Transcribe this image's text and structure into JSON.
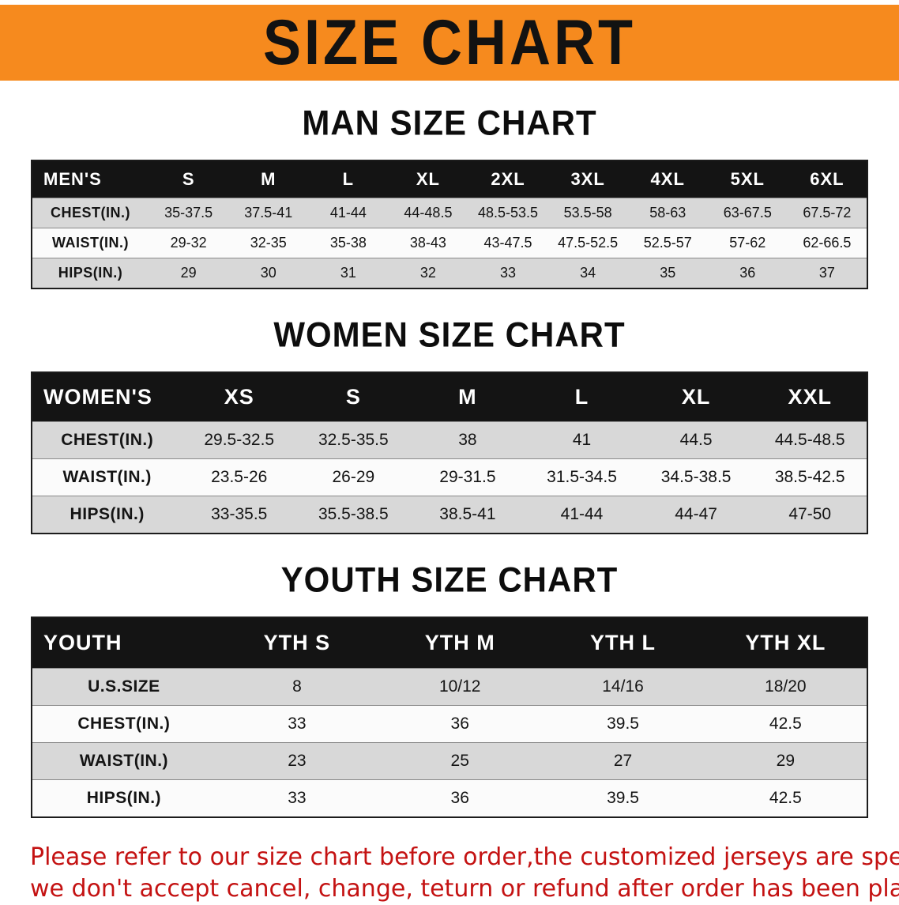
{
  "banner": {
    "title": "SIZE CHART",
    "bg_color": "#f68a1e",
    "text_color": "#121212"
  },
  "sections": [
    {
      "heading": "MAN SIZE CHART",
      "table": {
        "corner": "MEN'S",
        "columns": [
          "S",
          "M",
          "L",
          "XL",
          "2XL",
          "3XL",
          "4XL",
          "5XL",
          "6XL"
        ],
        "rows": [
          {
            "label": "CHEST(IN.)",
            "values": [
              "35-37.5",
              "37.5-41",
              "41-44",
              "44-48.5",
              "48.5-53.5",
              "53.5-58",
              "58-63",
              "63-67.5",
              "67.5-72"
            ]
          },
          {
            "label": "WAIST(IN.)",
            "values": [
              "29-32",
              "32-35",
              "35-38",
              "38-43",
              "43-47.5",
              "47.5-52.5",
              "52.5-57",
              "57-62",
              "62-66.5"
            ]
          },
          {
            "label": "HIPS(IN.)",
            "values": [
              "29",
              "30",
              "31",
              "32",
              "33",
              "34",
              "35",
              "36",
              "37"
            ]
          }
        ]
      }
    },
    {
      "heading": "WOMEN SIZE CHART",
      "table": {
        "corner": "WOMEN'S",
        "columns": [
          "XS",
          "S",
          "M",
          "L",
          "XL",
          "XXL"
        ],
        "rows": [
          {
            "label": "CHEST(IN.)",
            "values": [
              "29.5-32.5",
              "32.5-35.5",
              "38",
              "41",
              "44.5",
              "44.5-48.5"
            ]
          },
          {
            "label": "WAIST(IN.)",
            "values": [
              "23.5-26",
              "26-29",
              "29-31.5",
              "31.5-34.5",
              "34.5-38.5",
              "38.5-42.5"
            ]
          },
          {
            "label": "HIPS(IN.)",
            "values": [
              "33-35.5",
              "35.5-38.5",
              "38.5-41",
              "41-44",
              "44-47",
              "47-50"
            ]
          }
        ]
      }
    },
    {
      "heading": "YOUTH SIZE CHART",
      "table": {
        "corner": "YOUTH",
        "columns": [
          "YTH S",
          "YTH M",
          "YTH L",
          "YTH XL"
        ],
        "rows": [
          {
            "label": "U.S.SIZE",
            "values": [
              "8",
              "10/12",
              "14/16",
              "18/20"
            ]
          },
          {
            "label": "CHEST(IN.)",
            "values": [
              "33",
              "36",
              "39.5",
              "42.5"
            ]
          },
          {
            "label": "WAIST(IN.)",
            "values": [
              "23",
              "25",
              "27",
              "29"
            ]
          },
          {
            "label": "HIPS(IN.)",
            "values": [
              "33",
              "36",
              "39.5",
              "42.5"
            ]
          }
        ]
      }
    }
  ],
  "footer_note": {
    "line1": "Please refer to our size chart before order,the customized jerseys are special products,",
    "line2": "we don't accept cancel, change, teturn or refund after order has been placed!",
    "color": "#c41212"
  }
}
